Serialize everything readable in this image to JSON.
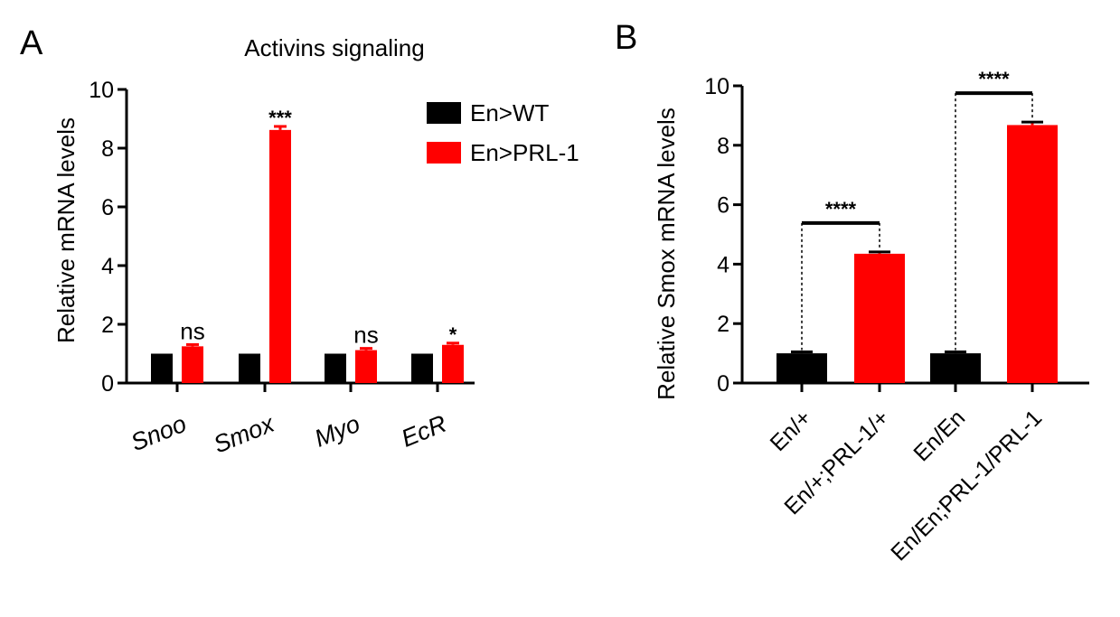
{
  "panels": {
    "a": {
      "letter": "A"
    },
    "b": {
      "letter": "B"
    }
  },
  "chart_data": [
    {
      "type": "bar",
      "title": "Activins signaling",
      "xlabel": "",
      "ylabel": "Relative mRNA levels",
      "ylim": [
        0,
        10
      ],
      "yticks": [
        "0",
        "2",
        "4",
        "6",
        "8",
        "10"
      ],
      "categories": [
        "Snoo",
        "Smox",
        "Myo",
        "EcR"
      ],
      "series": [
        {
          "name": "En>WT",
          "color": "#000000",
          "values": [
            1.0,
            1.0,
            1.0,
            1.0
          ],
          "errors": [
            0,
            0,
            0,
            0
          ]
        },
        {
          "name": "En>PRL-1",
          "color": "#ff0000",
          "values": [
            1.25,
            8.62,
            1.12,
            1.3
          ],
          "errors": [
            0.06,
            0.12,
            0.06,
            0.06
          ]
        }
      ],
      "annotations": [
        "ns",
        "***",
        "ns",
        "*"
      ],
      "legend": "top-right",
      "grid": false
    },
    {
      "type": "bar",
      "title": "",
      "xlabel": "",
      "ylabel": "Relative Smox mRNA levels",
      "ylim": [
        0,
        10
      ],
      "yticks": [
        "0",
        "2",
        "4",
        "6",
        "8",
        "10"
      ],
      "categories": [
        "En/+",
        "En/+;PRL-1/+",
        "En/En",
        "En/En;PRL-1/PRL-1"
      ],
      "values": [
        1.0,
        4.35,
        1.0,
        8.68
      ],
      "errors": [
        0.05,
        0.06,
        0.05,
        0.1
      ],
      "colors": [
        "#000000",
        "#ff0000",
        "#000000",
        "#ff0000"
      ],
      "comparisons": [
        {
          "from": 0,
          "to": 1,
          "label": "****"
        },
        {
          "from": 2,
          "to": 3,
          "label": "****"
        }
      ],
      "grid": false
    }
  ]
}
